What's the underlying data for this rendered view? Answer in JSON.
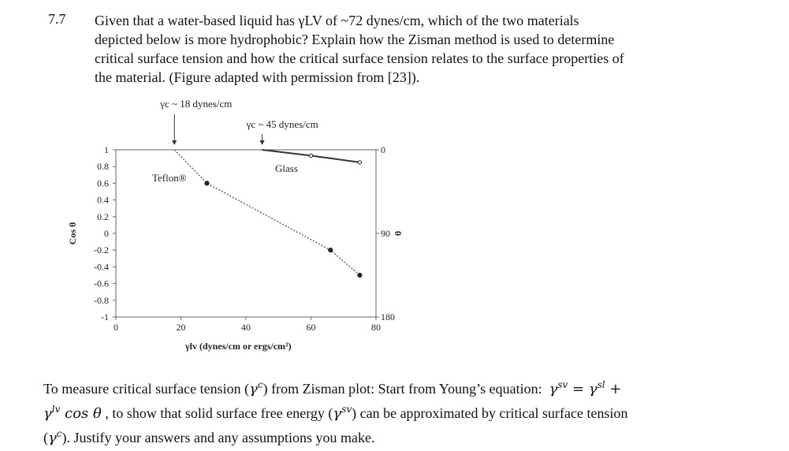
{
  "question": {
    "number": "7.7",
    "lines": [
      "Given that a water-based liquid has γLV of ~72 dynes/cm, which of the two materials",
      "depicted below is more hydrophobic?  Explain how the Zisman method is used to determine",
      "critical surface tension and how the critical surface tension relates to the surface properties of",
      "the material. (Figure adapted with permission from [23])."
    ]
  },
  "chart_data": {
    "type": "line",
    "xlabel": "γlv (dynes/cm or ergs/cm²)",
    "ylabel": "Cos θ",
    "ylabel_right": "θ",
    "xlim": [
      0,
      80
    ],
    "ylim": [
      -1,
      1
    ],
    "x_ticks": [
      "0",
      "20",
      "40",
      "60",
      "80"
    ],
    "y_ticks": [
      "1",
      "0.8",
      "0.6",
      "0.4",
      "0.2",
      "0",
      "-0.2",
      "-0.4",
      "-0.6",
      "-0.8",
      "-1"
    ],
    "y2_ticks": [
      "0",
      "90",
      "180"
    ],
    "series": [
      {
        "name": "Teflon®",
        "x": [
          18,
          28,
          66,
          75
        ],
        "y": [
          1.0,
          0.6,
          -0.2,
          -0.5
        ]
      },
      {
        "name": "Glass",
        "x": [
          45,
          60,
          75
        ],
        "y": [
          1.0,
          0.93,
          0.85
        ]
      }
    ],
    "annotations": [
      {
        "text": "γc ~ 18 dynes/cm",
        "x": 18
      },
      {
        "text": "γc ~ 45 dynes/cm",
        "x": 45
      }
    ]
  },
  "bottom": {
    "l1_a": "To measure critical surface tension (",
    "l1_b": ") from Zisman plot:  Start from Young’s equation:",
    "l2_a": ", to show that solid surface free energy (",
    "l2_b": ") can be approximated by critical surface tension",
    "l3_b": "). Justify your answers and any assumptions you make."
  }
}
